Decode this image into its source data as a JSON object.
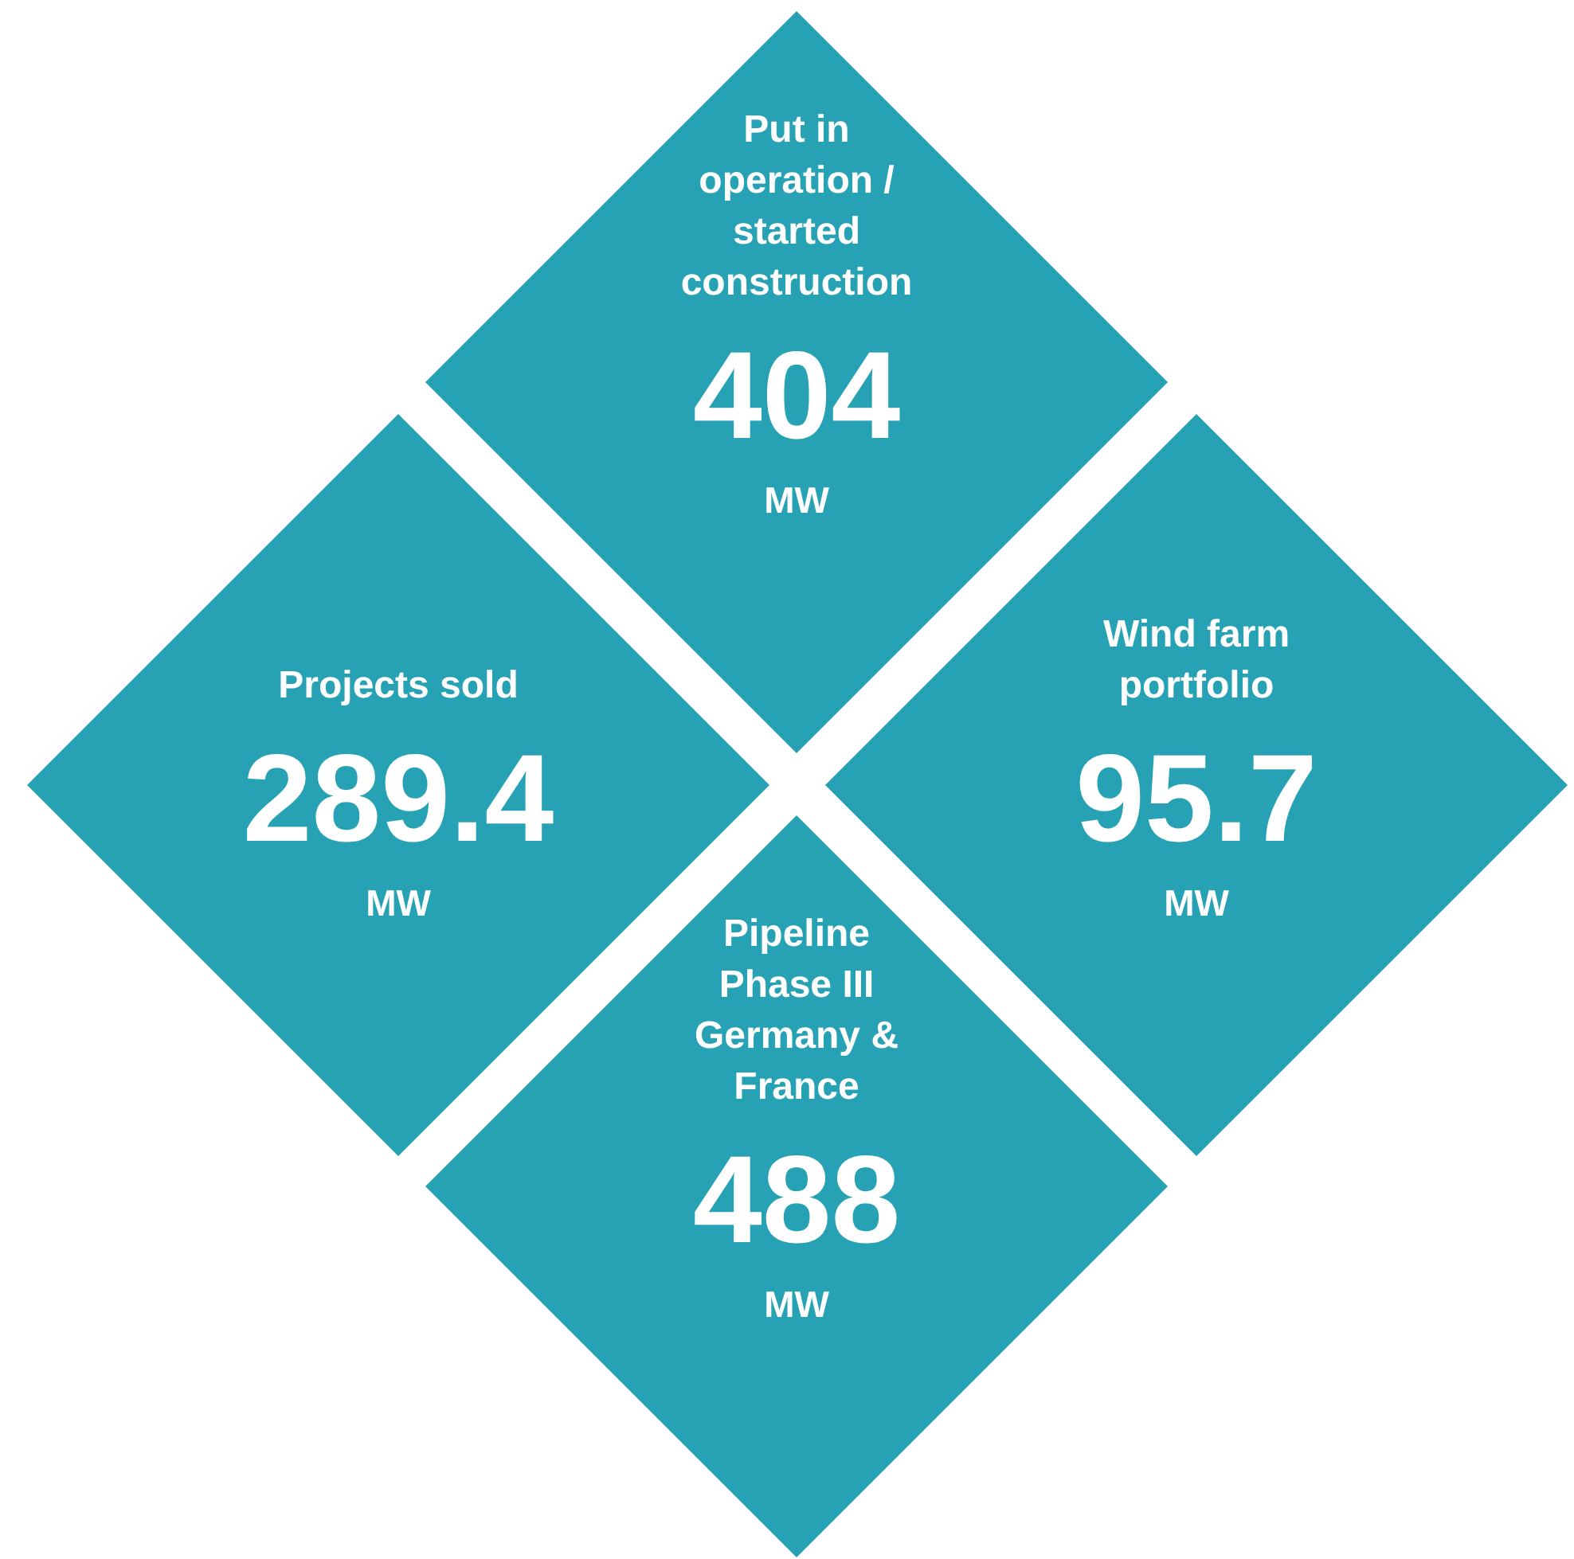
{
  "chart_data": {
    "type": "other",
    "categories": [
      "Put in operation / started construction",
      "Projects sold",
      "Wind farm portfolio",
      "Pipeline Phase III Germany & France"
    ],
    "values": [
      404,
      289.4,
      95.7,
      488
    ],
    "colors": [
      "#26a2b4",
      "#26a2b4",
      "#26a2b4",
      "#26a2b4"
    ],
    "data_labels": true,
    "annotations": [
      "MW",
      "MW",
      "MW",
      "MW"
    ]
  }
}
